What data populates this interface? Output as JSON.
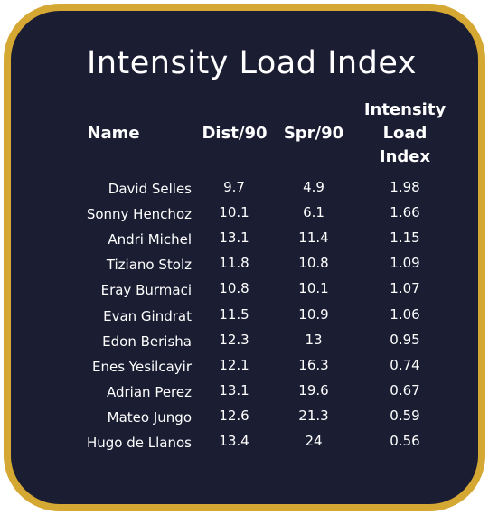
{
  "title": "Intensity Load Index",
  "table": {
    "columns": [
      "Name",
      "Dist/90",
      "Spr/90",
      "Intensity Load Index"
    ],
    "rows": [
      [
        "David Selles",
        "9.7",
        "4.9",
        "1.98"
      ],
      [
        "Sonny Henchoz",
        "10.1",
        "6.1",
        "1.66"
      ],
      [
        "Andri Michel",
        "13.1",
        "11.4",
        "1.15"
      ],
      [
        "Tiziano Stolz",
        "11.8",
        "10.8",
        "1.09"
      ],
      [
        "Eray Burmaci",
        "10.8",
        "10.1",
        "1.07"
      ],
      [
        "Evan Gindrat",
        "11.5",
        "10.9",
        "1.06"
      ],
      [
        "Edon Berisha",
        "12.3",
        "13",
        "0.95"
      ],
      [
        "Enes Yesilcayir",
        "12.1",
        "16.3",
        "0.74"
      ],
      [
        "Adrian Perez",
        "13.1",
        "19.6",
        "0.67"
      ],
      [
        "Mateo Jungo",
        "12.6",
        "21.3",
        "0.59"
      ],
      [
        "Hugo de Llanos",
        "13.4",
        "24",
        "0.56"
      ]
    ]
  }
}
